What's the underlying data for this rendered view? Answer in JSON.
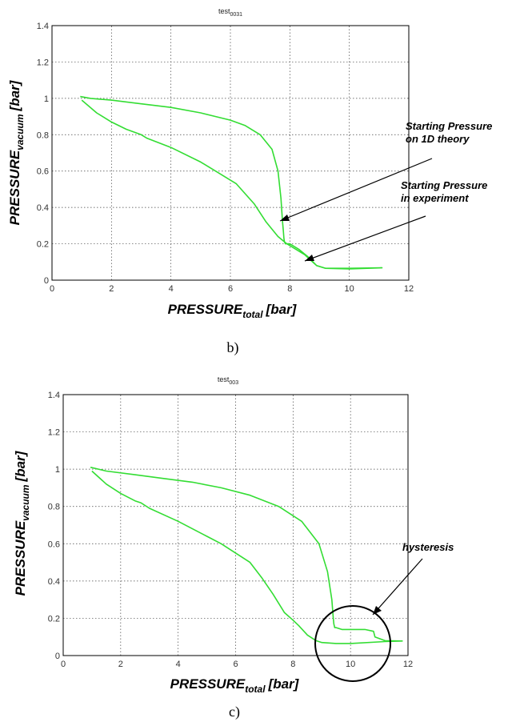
{
  "chart_data": [
    {
      "type": "line",
      "title": "test",
      "title_subscript": "0031",
      "xlabel": "PRESSURE",
      "xlabel_subscript": "total",
      "xlabel_unit": "[bar]",
      "ylabel": "PRESSURE",
      "ylabel_subscript": "vacuum",
      "ylabel_unit": "[bar]",
      "xlim": [
        0,
        12
      ],
      "ylim": [
        0,
        1.4
      ],
      "xticks": [
        "0",
        "2",
        "4",
        "6",
        "8",
        "10",
        "12"
      ],
      "yticks": [
        "0",
        "0.2",
        "0.4",
        "0.6",
        "0.8",
        "1",
        "1.2",
        "1.4"
      ],
      "grid": true,
      "line_color": "#33dd33",
      "series": [
        {
          "x": [
            0.95,
            1.3,
            2.0,
            3.0,
            4.0,
            5.0,
            6.0,
            6.5,
            7.0,
            7.4,
            7.6,
            7.7,
            7.75,
            7.78,
            7.8,
            7.82,
            7.85,
            8.0,
            8.3,
            8.6,
            8.9,
            9.2,
            10.0,
            11.1,
            10.0,
            9.2,
            8.9,
            8.7,
            8.5,
            8.2,
            7.9,
            7.6,
            7.2,
            6.8,
            6.2,
            6.0,
            5.5,
            5.0,
            4.0,
            3.2,
            3.0,
            2.5,
            2.0,
            1.5,
            1.0
          ],
          "y": [
            1.01,
            1.0,
            0.99,
            0.97,
            0.95,
            0.92,
            0.88,
            0.85,
            0.8,
            0.72,
            0.6,
            0.45,
            0.33,
            0.27,
            0.23,
            0.21,
            0.2,
            0.2,
            0.17,
            0.13,
            0.08,
            0.065,
            0.065,
            0.068,
            0.062,
            0.065,
            0.08,
            0.11,
            0.14,
            0.17,
            0.2,
            0.24,
            0.32,
            0.42,
            0.53,
            0.55,
            0.6,
            0.65,
            0.73,
            0.78,
            0.8,
            0.83,
            0.87,
            0.92,
            0.99
          ]
        }
      ],
      "annotations": [
        {
          "lines": [
            "Starting Pressure",
            "on 1D theory"
          ],
          "target": [
            7.85,
            0.31
          ]
        },
        {
          "lines": [
            "Starting Pressure",
            "in experiment"
          ],
          "target": [
            8.55,
            0.1
          ]
        }
      ],
      "caption": "b)"
    },
    {
      "type": "line",
      "title": "test",
      "title_subscript": "003",
      "xlabel": "PRESSURE",
      "xlabel_subscript": "total",
      "xlabel_unit": "[bar]",
      "ylabel": "PRESSURE",
      "ylabel_subscript": "vacuum",
      "ylabel_unit": "[bar]",
      "xlim": [
        0,
        12
      ],
      "ylim": [
        0,
        1.4
      ],
      "xticks": [
        "0",
        "2",
        "4",
        "6",
        "8",
        "10",
        "12"
      ],
      "yticks": [
        "0",
        "0.2",
        "0.4",
        "0.6",
        "0.8",
        "1",
        "1.2",
        "1.4"
      ],
      "grid": true,
      "line_color": "#33dd33",
      "series": [
        {
          "x": [
            0.95,
            1.5,
            2.5,
            3.5,
            4.5,
            5.5,
            6.5,
            7.5,
            8.3,
            8.9,
            9.2,
            9.35,
            9.4,
            9.42,
            9.45,
            9.5,
            9.7,
            10.0,
            10.5,
            10.8,
            10.85,
            11.2,
            11.8,
            11.2,
            10.0,
            9.5,
            9.0,
            8.8,
            8.5,
            8.2,
            8.0,
            7.7,
            7.3,
            6.9,
            6.5,
            6.2,
            6.0,
            5.5,
            5.0,
            4.0,
            3.0,
            2.7,
            2.5,
            2.0,
            1.5,
            1.0
          ],
          "y": [
            1.01,
            0.99,
            0.97,
            0.95,
            0.93,
            0.9,
            0.86,
            0.8,
            0.72,
            0.6,
            0.45,
            0.3,
            0.2,
            0.17,
            0.15,
            0.15,
            0.14,
            0.14,
            0.14,
            0.13,
            0.1,
            0.08,
            0.078,
            0.075,
            0.065,
            0.065,
            0.07,
            0.08,
            0.11,
            0.16,
            0.19,
            0.23,
            0.33,
            0.42,
            0.5,
            0.53,
            0.55,
            0.6,
            0.64,
            0.72,
            0.79,
            0.82,
            0.83,
            0.87,
            0.92,
            0.99
          ]
        }
      ],
      "annotations": [
        {
          "lines": [
            "hysteresis"
          ],
          "target": [
            10.7,
            0.155
          ]
        }
      ],
      "caption": "c)"
    }
  ]
}
